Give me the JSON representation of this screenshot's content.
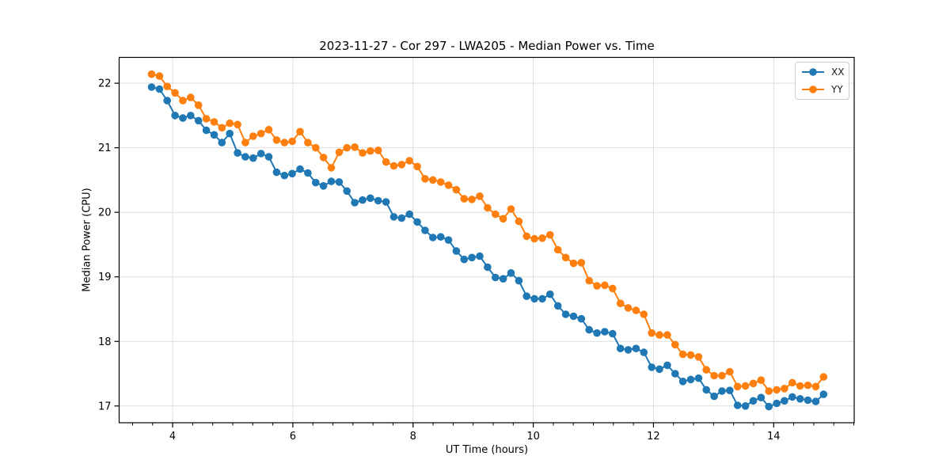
{
  "figure": {
    "title": "2023-11-27 - Cor 297 - LWA205 - Median Power vs. Time",
    "xlabel": "UT Time (hours)",
    "ylabel": "Median Power (CPU)",
    "background": "#ffffff"
  },
  "legend": {
    "entries": [
      {
        "label": "XX",
        "color": "#1f77b4"
      },
      {
        "label": "YY",
        "color": "#ff7f0e"
      }
    ]
  },
  "colors": {
    "series_xx": "#1f77b4",
    "series_yy": "#ff7f0e",
    "grid": "#dedede",
    "spine": "#000000",
    "tick_label": "#000000"
  },
  "chart_data": {
    "type": "line",
    "title": "2023-11-27 - Cor 297 - LWA205 - Median Power vs. Time",
    "xlabel": "UT Time (hours)",
    "ylabel": "Median Power (CPU)",
    "xlim": [
      3.11,
      15.34
    ],
    "ylim": [
      16.74,
      22.4
    ],
    "x_ticks": [
      4,
      6,
      8,
      10,
      12,
      14
    ],
    "y_ticks": [
      17,
      18,
      19,
      20,
      21,
      22
    ],
    "x_minor_step": 0.3333333,
    "grid": true,
    "legend_position": "upper right",
    "marker": "circle",
    "x": [
      3.65,
      3.78,
      3.91,
      4.04,
      4.17,
      4.3,
      4.43,
      4.56,
      4.69,
      4.82,
      4.95,
      5.08,
      5.21,
      5.34,
      5.47,
      5.6,
      5.73,
      5.86,
      5.99,
      6.12,
      6.25,
      6.38,
      6.51,
      6.64,
      6.77,
      6.9,
      7.03,
      7.16,
      7.29,
      7.42,
      7.55,
      7.68,
      7.81,
      7.94,
      8.07,
      8.2,
      8.33,
      8.46,
      8.59,
      8.72,
      8.85,
      8.98,
      9.11,
      9.24,
      9.37,
      9.5,
      9.63,
      9.76,
      9.89,
      10.02,
      10.15,
      10.28,
      10.41,
      10.54,
      10.67,
      10.8,
      10.93,
      11.06,
      11.19,
      11.32,
      11.45,
      11.58,
      11.71,
      11.84,
      11.97,
      12.1,
      12.23,
      12.36,
      12.49,
      12.62,
      12.75,
      12.88,
      13.01,
      13.14,
      13.27,
      13.4,
      13.53,
      13.66,
      13.79,
      13.92,
      14.05,
      14.18,
      14.31,
      14.44,
      14.57,
      14.7,
      14.83
    ],
    "series": [
      {
        "name": "XX",
        "color": "#1f77b4",
        "values": [
          21.94,
          21.91,
          21.73,
          21.5,
          21.46,
          21.5,
          21.42,
          21.27,
          21.2,
          21.08,
          21.22,
          20.92,
          20.86,
          20.84,
          20.91,
          20.86,
          20.62,
          20.57,
          20.6,
          20.67,
          20.61,
          20.46,
          20.41,
          20.48,
          20.47,
          20.33,
          20.15,
          20.19,
          20.22,
          20.18,
          20.16,
          19.93,
          19.91,
          19.97,
          19.85,
          19.72,
          19.61,
          19.62,
          19.57,
          19.4,
          19.27,
          19.3,
          19.32,
          19.15,
          18.99,
          18.97,
          19.06,
          18.94,
          18.7,
          18.66,
          18.66,
          18.73,
          18.55,
          18.42,
          18.39,
          18.35,
          18.18,
          18.13,
          18.15,
          18.12,
          17.89,
          17.87,
          17.89,
          17.83,
          17.6,
          17.57,
          17.63,
          17.5,
          17.38,
          17.41,
          17.43,
          17.25,
          17.15,
          17.23,
          17.24,
          17.01,
          17.0,
          17.08,
          17.13,
          16.99,
          17.04,
          17.08,
          17.14,
          17.11,
          17.09,
          17.07,
          17.18
        ]
      },
      {
        "name": "YY",
        "color": "#ff7f0e",
        "values": [
          22.14,
          22.11,
          21.95,
          21.85,
          21.73,
          21.78,
          21.66,
          21.45,
          21.4,
          21.31,
          21.38,
          21.36,
          21.08,
          21.18,
          21.22,
          21.28,
          21.12,
          21.08,
          21.1,
          21.25,
          21.08,
          21.0,
          20.85,
          20.69,
          20.93,
          21.0,
          21.01,
          20.92,
          20.95,
          20.96,
          20.78,
          20.72,
          20.74,
          20.8,
          20.71,
          20.52,
          20.5,
          20.47,
          20.42,
          20.35,
          20.21,
          20.2,
          20.25,
          20.07,
          19.97,
          19.9,
          20.05,
          19.86,
          19.63,
          19.59,
          19.6,
          19.65,
          19.42,
          19.3,
          19.21,
          19.22,
          18.94,
          18.86,
          18.87,
          18.82,
          18.59,
          18.52,
          18.48,
          18.42,
          18.13,
          18.1,
          18.1,
          17.95,
          17.8,
          17.79,
          17.76,
          17.56,
          17.47,
          17.47,
          17.53,
          17.3,
          17.31,
          17.35,
          17.4,
          17.23,
          17.25,
          17.27,
          17.36,
          17.31,
          17.32,
          17.3,
          17.45
        ]
      }
    ]
  }
}
